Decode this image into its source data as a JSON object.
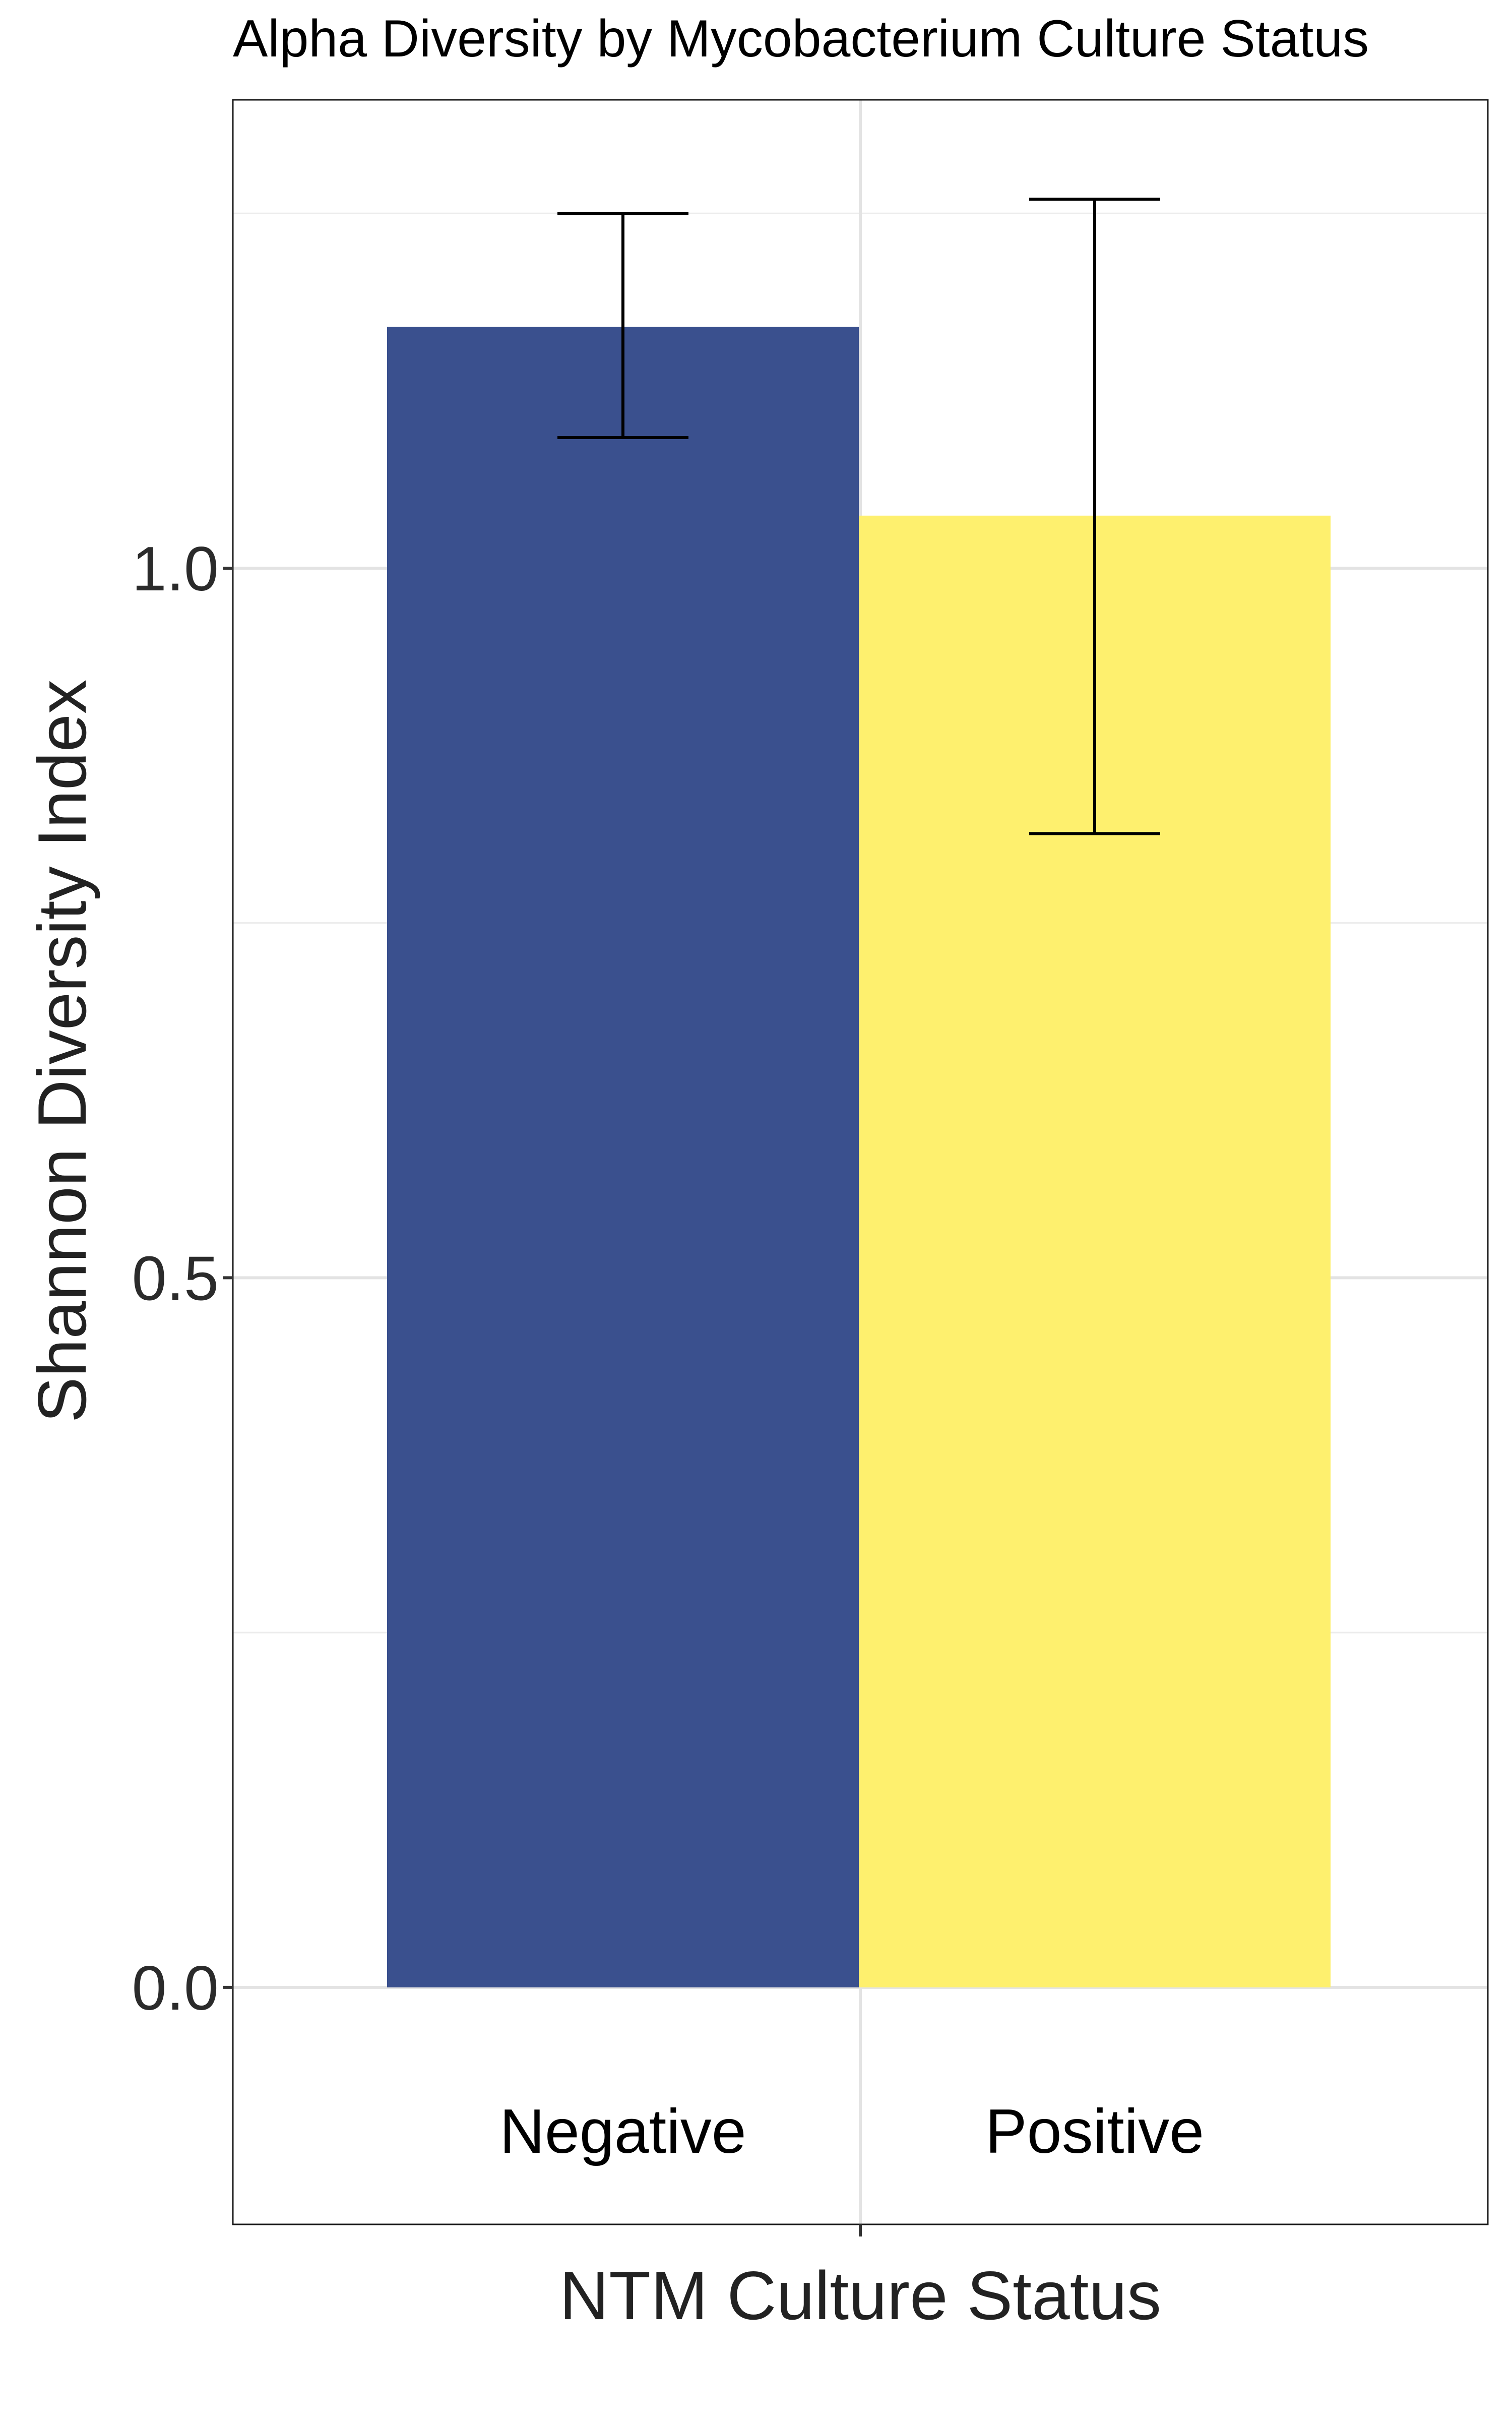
{
  "chart_data": {
    "type": "bar",
    "title": "Alpha Diversity by Mycobacterium Culture Status",
    "xlabel": "NTM Culture Status",
    "ylabel": "Shannon Diversity Index",
    "categories": [
      "Negative",
      "Positive"
    ],
    "values": [
      1.17,
      1.037
    ],
    "error_low": [
      1.092,
      0.813
    ],
    "error_high": [
      1.25,
      1.26
    ],
    "colors": [
      "#3A508E",
      "#FEF06E"
    ],
    "ylim": [
      -0.167,
      1.33
    ],
    "yticks": [
      0.0,
      0.5,
      1.0
    ],
    "ytick_labels": [
      "0.0",
      "0.5",
      "1.0"
    ],
    "grid": true,
    "legend": "none"
  }
}
